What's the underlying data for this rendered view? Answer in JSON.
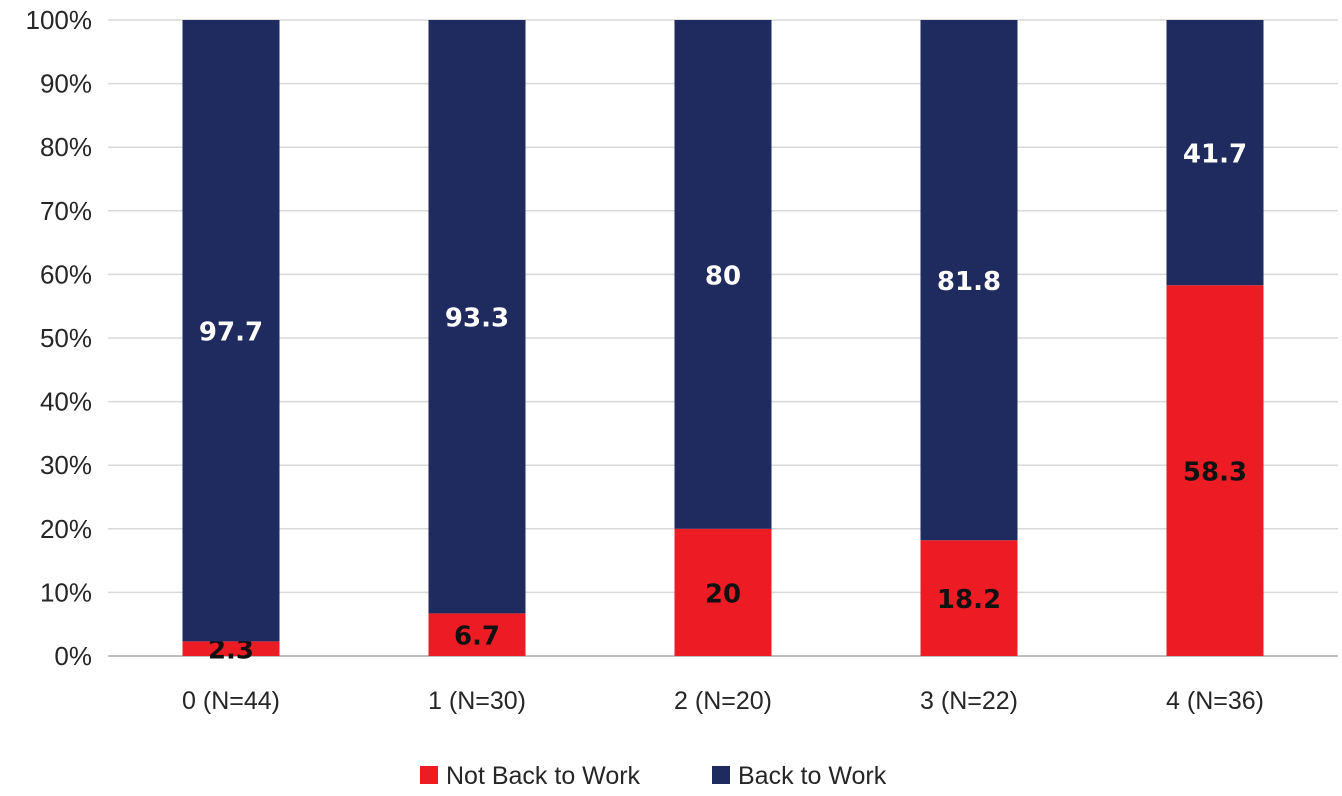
{
  "chart_data": {
    "type": "bar",
    "stacked": true,
    "percent": true,
    "categories": [
      "0 (N=44)",
      "1 (N=30)",
      "2 (N=20)",
      "3 (N=22)",
      "4 (N=36)"
    ],
    "series": [
      {
        "name": "Not Back to Work",
        "color": "#ed1c24",
        "label_color": "#111111",
        "values": [
          2.3,
          6.7,
          20,
          18.2,
          58.3
        ]
      },
      {
        "name": "Back to Work",
        "color": "#1f2a5e",
        "label_color": "#ffffff",
        "values": [
          97.7,
          93.3,
          80,
          81.8,
          41.7
        ]
      }
    ],
    "ylim": [
      0,
      100
    ],
    "yticks": [
      "0%",
      "10%",
      "20%",
      "30%",
      "40%",
      "50%",
      "60%",
      "70%",
      "80%",
      "90%",
      "100%"
    ],
    "grid": true,
    "legend": "bottom"
  }
}
